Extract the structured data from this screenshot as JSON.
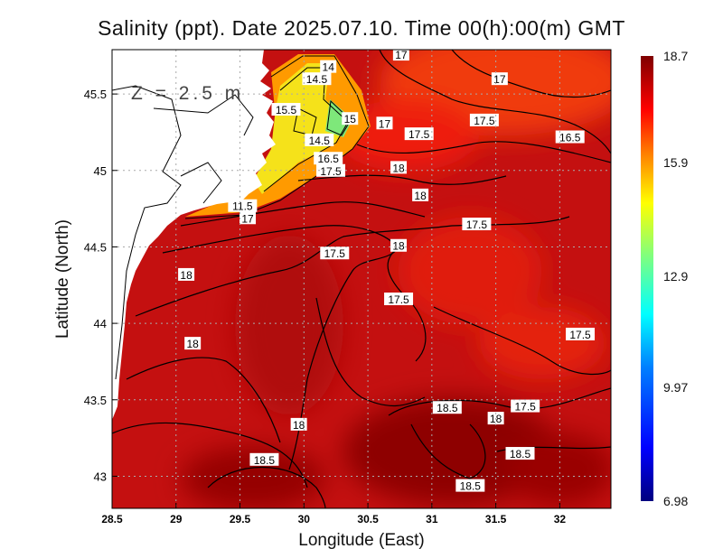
{
  "title": "Salinity (ppt). Date 2025.07.10. Time 00(h):00(m) GMT",
  "xlabel": "Longitude (East)",
  "ylabel": "Latitude (North)",
  "depth_label": "Z = 2.5 m",
  "chart_data": {
    "type": "heatmap",
    "variable": "Salinity (ppt)",
    "xlim": [
      28.5,
      32.4
    ],
    "ylim": [
      42.79,
      45.79
    ],
    "x_ticks": [
      "28.5",
      "29",
      "29.5",
      "30",
      "30.5",
      "31",
      "31.5",
      "32"
    ],
    "x_tick_values": [
      28.5,
      29,
      29.5,
      30,
      30.5,
      31,
      31.5,
      32
    ],
    "y_ticks": [
      "43",
      "43.5",
      "44",
      "44.5",
      "45",
      "45.5"
    ],
    "y_tick_values": [
      43,
      43.5,
      44,
      44.5,
      45,
      45.5
    ],
    "grid": true,
    "colorbar": {
      "min": 6.98,
      "max": 18.7,
      "tick_labels": [
        "18.7",
        "15.9",
        "12.9",
        "9.97",
        "6.98"
      ],
      "tick_values": [
        18.7,
        15.9,
        12.9,
        9.97,
        6.98
      ],
      "colormap": [
        "#00007f",
        "#0000ff",
        "#007fff",
        "#00ffff",
        "#7fff7f",
        "#ffff00",
        "#ff7f00",
        "#ff0000",
        "#7f0000"
      ]
    },
    "contour_labels": [
      {
        "text": "17",
        "lon": 30.76,
        "lat": 45.76
      },
      {
        "text": "14",
        "lon": 30.19,
        "lat": 45.68
      },
      {
        "text": "14.5",
        "lon": 30.1,
        "lat": 45.6
      },
      {
        "text": "17",
        "lon": 31.53,
        "lat": 45.6
      },
      {
        "text": "15.5",
        "lon": 29.86,
        "lat": 45.4
      },
      {
        "text": "17.5",
        "lon": 31.41,
        "lat": 45.33
      },
      {
        "text": "15",
        "lon": 30.36,
        "lat": 45.34
      },
      {
        "text": "17",
        "lon": 30.63,
        "lat": 45.31
      },
      {
        "text": "17.5",
        "lon": 30.9,
        "lat": 45.24
      },
      {
        "text": "14.5",
        "lon": 30.12,
        "lat": 45.2
      },
      {
        "text": "16.5",
        "lon": 32.08,
        "lat": 45.22
      },
      {
        "text": "16.5",
        "lon": 30.19,
        "lat": 45.08
      },
      {
        "text": "17.5",
        "lon": 30.21,
        "lat": 45.0
      },
      {
        "text": "18",
        "lon": 30.74,
        "lat": 45.02
      },
      {
        "text": "18",
        "lon": 30.91,
        "lat": 44.84
      },
      {
        "text": "11.5",
        "lon": 29.52,
        "lat": 44.77
      },
      {
        "text": "17",
        "lon": 29.56,
        "lat": 44.69
      },
      {
        "text": "17.5",
        "lon": 31.35,
        "lat": 44.65
      },
      {
        "text": "18",
        "lon": 30.74,
        "lat": 44.51
      },
      {
        "text": "17.5",
        "lon": 30.24,
        "lat": 44.46
      },
      {
        "text": "18",
        "lon": 29.08,
        "lat": 44.32
      },
      {
        "text": "17.5",
        "lon": 30.74,
        "lat": 44.16
      },
      {
        "text": "18",
        "lon": 29.13,
        "lat": 43.87
      },
      {
        "text": "17.5",
        "lon": 32.16,
        "lat": 43.93
      },
      {
        "text": "18.5",
        "lon": 31.12,
        "lat": 43.45
      },
      {
        "text": "17.5",
        "lon": 31.73,
        "lat": 43.46
      },
      {
        "text": "18",
        "lon": 31.5,
        "lat": 43.38
      },
      {
        "text": "18",
        "lon": 29.96,
        "lat": 43.34
      },
      {
        "text": "18.5",
        "lon": 31.69,
        "lat": 43.15
      },
      {
        "text": "18.5",
        "lon": 29.69,
        "lat": 43.11
      },
      {
        "text": "18.5",
        "lon": 31.3,
        "lat": 42.94
      }
    ]
  }
}
